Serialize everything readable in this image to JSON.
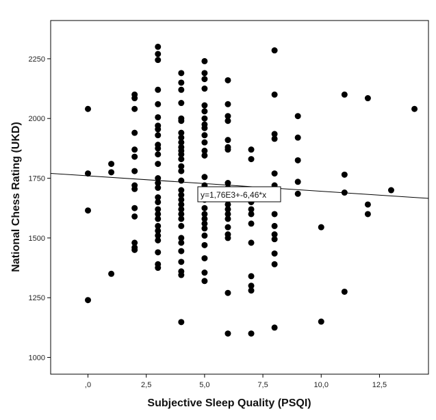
{
  "chart_data": {
    "type": "scatter",
    "title": "",
    "xlabel": "Subjective Sleep Quality (PSQI)",
    "ylabel": "National Chess Rating (UKD)",
    "xlim": [
      -1.6,
      14.6
    ],
    "ylim": [
      930,
      2410
    ],
    "x_ticks": [
      0,
      2.5,
      5.0,
      7.5,
      10.0,
      12.5
    ],
    "x_tick_labels": [
      ",0",
      "2,5",
      "5,0",
      "7,5",
      "10,0",
      "12,5"
    ],
    "y_ticks": [
      1000,
      1250,
      1500,
      1750,
      2000,
      2250
    ],
    "y_tick_labels": [
      "1000",
      "1250",
      "1500",
      "1750",
      "2000",
      "2250"
    ],
    "grid": false,
    "fit_line": {
      "intercept": 1760,
      "slope": -6.46,
      "label": "y=1,76E3+-6,46*x"
    },
    "points": [
      [
        0,
        2040
      ],
      [
        0,
        1770
      ],
      [
        0,
        1615
      ],
      [
        0,
        1240
      ],
      [
        1,
        1810
      ],
      [
        1,
        1775
      ],
      [
        1,
        1350
      ],
      [
        2,
        2100
      ],
      [
        2,
        2085
      ],
      [
        2,
        2040
      ],
      [
        2,
        1940
      ],
      [
        2,
        1870
      ],
      [
        2,
        1840
      ],
      [
        2,
        1780
      ],
      [
        2,
        1720
      ],
      [
        2,
        1705
      ],
      [
        2,
        1625
      ],
      [
        2,
        1590
      ],
      [
        2,
        1480
      ],
      [
        2,
        1460
      ],
      [
        2,
        1450
      ],
      [
        3,
        2300
      ],
      [
        3,
        2270
      ],
      [
        3,
        2245
      ],
      [
        3,
        2120
      ],
      [
        3,
        2060
      ],
      [
        3,
        2005
      ],
      [
        3,
        1970
      ],
      [
        3,
        1955
      ],
      [
        3,
        1930
      ],
      [
        3,
        1890
      ],
      [
        3,
        1875
      ],
      [
        3,
        1850
      ],
      [
        3,
        1810
      ],
      [
        3,
        1750
      ],
      [
        3,
        1730
      ],
      [
        3,
        1710
      ],
      [
        3,
        1670
      ],
      [
        3,
        1650
      ],
      [
        3,
        1620
      ],
      [
        3,
        1600
      ],
      [
        3,
        1580
      ],
      [
        3,
        1550
      ],
      [
        3,
        1530
      ],
      [
        3,
        1510
      ],
      [
        3,
        1490
      ],
      [
        3,
        1440
      ],
      [
        3,
        1390
      ],
      [
        3,
        1375
      ],
      [
        4,
        2190
      ],
      [
        4,
        2150
      ],
      [
        4,
        2120
      ],
      [
        4,
        2065
      ],
      [
        4,
        2000
      ],
      [
        4,
        1990
      ],
      [
        4,
        1940
      ],
      [
        4,
        1920
      ],
      [
        4,
        1900
      ],
      [
        4,
        1880
      ],
      [
        4,
        1865
      ],
      [
        4,
        1850
      ],
      [
        4,
        1830
      ],
      [
        4,
        1800
      ],
      [
        4,
        1780
      ],
      [
        4,
        1740
      ],
      [
        4,
        1700
      ],
      [
        4,
        1680
      ],
      [
        4,
        1660
      ],
      [
        4,
        1640
      ],
      [
        4,
        1620
      ],
      [
        4,
        1600
      ],
      [
        4,
        1580
      ],
      [
        4,
        1550
      ],
      [
        4,
        1500
      ],
      [
        4,
        1480
      ],
      [
        4,
        1445
      ],
      [
        4,
        1400
      ],
      [
        4,
        1360
      ],
      [
        4,
        1345
      ],
      [
        4,
        1148
      ],
      [
        5,
        2240
      ],
      [
        5,
        2190
      ],
      [
        5,
        2165
      ],
      [
        5,
        2125
      ],
      [
        5,
        2055
      ],
      [
        5,
        2030
      ],
      [
        5,
        2000
      ],
      [
        5,
        1975
      ],
      [
        5,
        1960
      ],
      [
        5,
        1930
      ],
      [
        5,
        1900
      ],
      [
        5,
        1865
      ],
      [
        5,
        1845
      ],
      [
        5,
        1755
      ],
      [
        5,
        1720
      ],
      [
        5,
        1705
      ],
      [
        5,
        1690
      ],
      [
        5,
        1660
      ],
      [
        5,
        1625
      ],
      [
        5,
        1600
      ],
      [
        5,
        1580
      ],
      [
        5,
        1560
      ],
      [
        5,
        1540
      ],
      [
        5,
        1510
      ],
      [
        5,
        1470
      ],
      [
        5,
        1415
      ],
      [
        5,
        1355
      ],
      [
        5,
        1320
      ],
      [
        6,
        2160
      ],
      [
        6,
        2060
      ],
      [
        6,
        2010
      ],
      [
        6,
        1990
      ],
      [
        6,
        1910
      ],
      [
        6,
        1880
      ],
      [
        6,
        1870
      ],
      [
        6,
        1730
      ],
      [
        6,
        1710
      ],
      [
        6,
        1690
      ],
      [
        6,
        1670
      ],
      [
        6,
        1640
      ],
      [
        6,
        1620
      ],
      [
        6,
        1600
      ],
      [
        6,
        1580
      ],
      [
        6,
        1545
      ],
      [
        6,
        1515
      ],
      [
        6,
        1500
      ],
      [
        6,
        1270
      ],
      [
        6,
        1100
      ],
      [
        7,
        1870
      ],
      [
        7,
        1830
      ],
      [
        7,
        1650
      ],
      [
        7,
        1620
      ],
      [
        7,
        1600
      ],
      [
        7,
        1560
      ],
      [
        7,
        1480
      ],
      [
        7,
        1340
      ],
      [
        7,
        1300
      ],
      [
        7,
        1280
      ],
      [
        7,
        1100
      ],
      [
        8,
        2285
      ],
      [
        8,
        2100
      ],
      [
        8,
        1935
      ],
      [
        8,
        1915
      ],
      [
        8,
        1770
      ],
      [
        8,
        1720
      ],
      [
        8,
        1700
      ],
      [
        8,
        1670
      ],
      [
        8,
        1600
      ],
      [
        8,
        1550
      ],
      [
        8,
        1515
      ],
      [
        8,
        1495
      ],
      [
        8,
        1435
      ],
      [
        8,
        1390
      ],
      [
        8,
        1125
      ],
      [
        9,
        2010
      ],
      [
        9,
        1920
      ],
      [
        9,
        1825
      ],
      [
        9,
        1735
      ],
      [
        9,
        1685
      ],
      [
        10,
        1545
      ],
      [
        10,
        1150
      ],
      [
        11,
        2100
      ],
      [
        11,
        1765
      ],
      [
        11,
        1690
      ],
      [
        11,
        1275
      ],
      [
        12,
        2085
      ],
      [
        12,
        1640
      ],
      [
        12,
        1600
      ],
      [
        13,
        1700
      ],
      [
        14,
        2040
      ]
    ]
  }
}
